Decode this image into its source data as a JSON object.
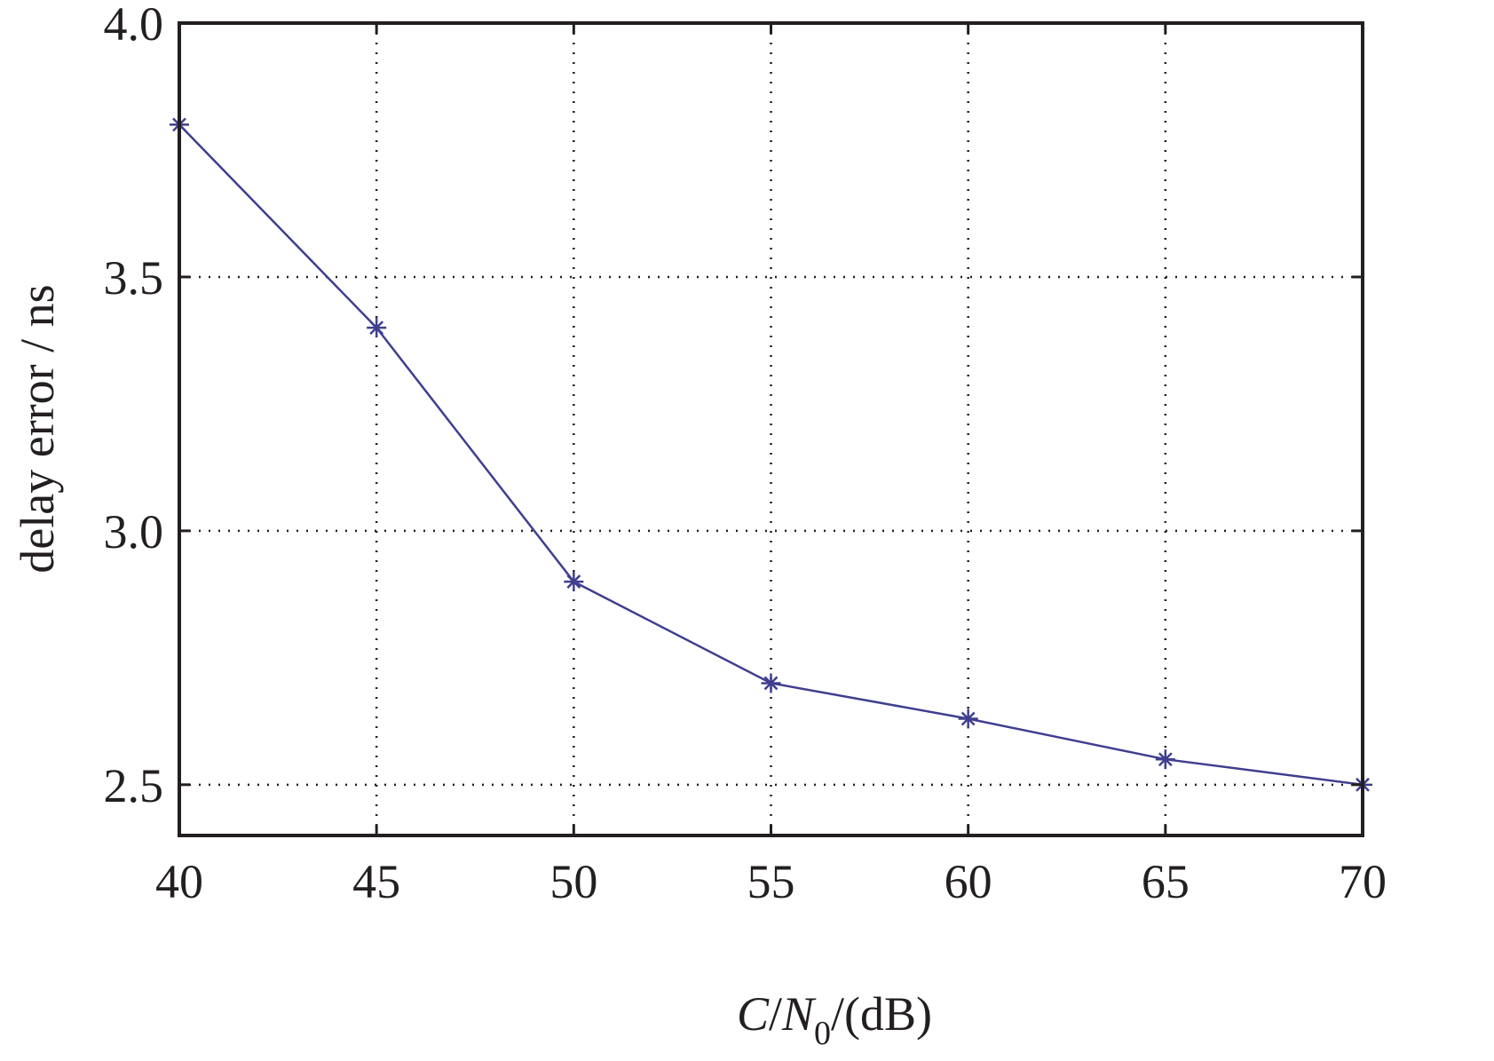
{
  "chart_data": {
    "type": "line",
    "title": "",
    "xlabel": {
      "italic_prefix": "C",
      "slash1": "/",
      "italic_n": "N",
      "subscript": "0",
      "suffix": "/(dB)"
    },
    "ylabel": "delay error / ns",
    "xlim": [
      40,
      70
    ],
    "ylim": [
      2.4,
      4.0
    ],
    "x_ticks": [
      40,
      45,
      50,
      55,
      60,
      65,
      70
    ],
    "x_tick_labels": [
      "40",
      "45",
      "50",
      "55",
      "60",
      "65",
      "70"
    ],
    "y_ticks": [
      2.5,
      3.0,
      3.5,
      4.0
    ],
    "y_tick_labels": [
      "2.5",
      "3.0",
      "3.5",
      "4.0"
    ],
    "grid": true,
    "series": [
      {
        "marker": "asterisk",
        "color": "#3f3f8f",
        "x": [
          40,
          45,
          50,
          55,
          60,
          65,
          70
        ],
        "y": [
          3.8,
          3.4,
          2.9,
          2.7,
          2.63,
          2.55,
          2.5
        ]
      }
    ]
  },
  "colors": {
    "axis": "#231f20",
    "line": "#3f3f8f",
    "background": "#ffffff"
  }
}
